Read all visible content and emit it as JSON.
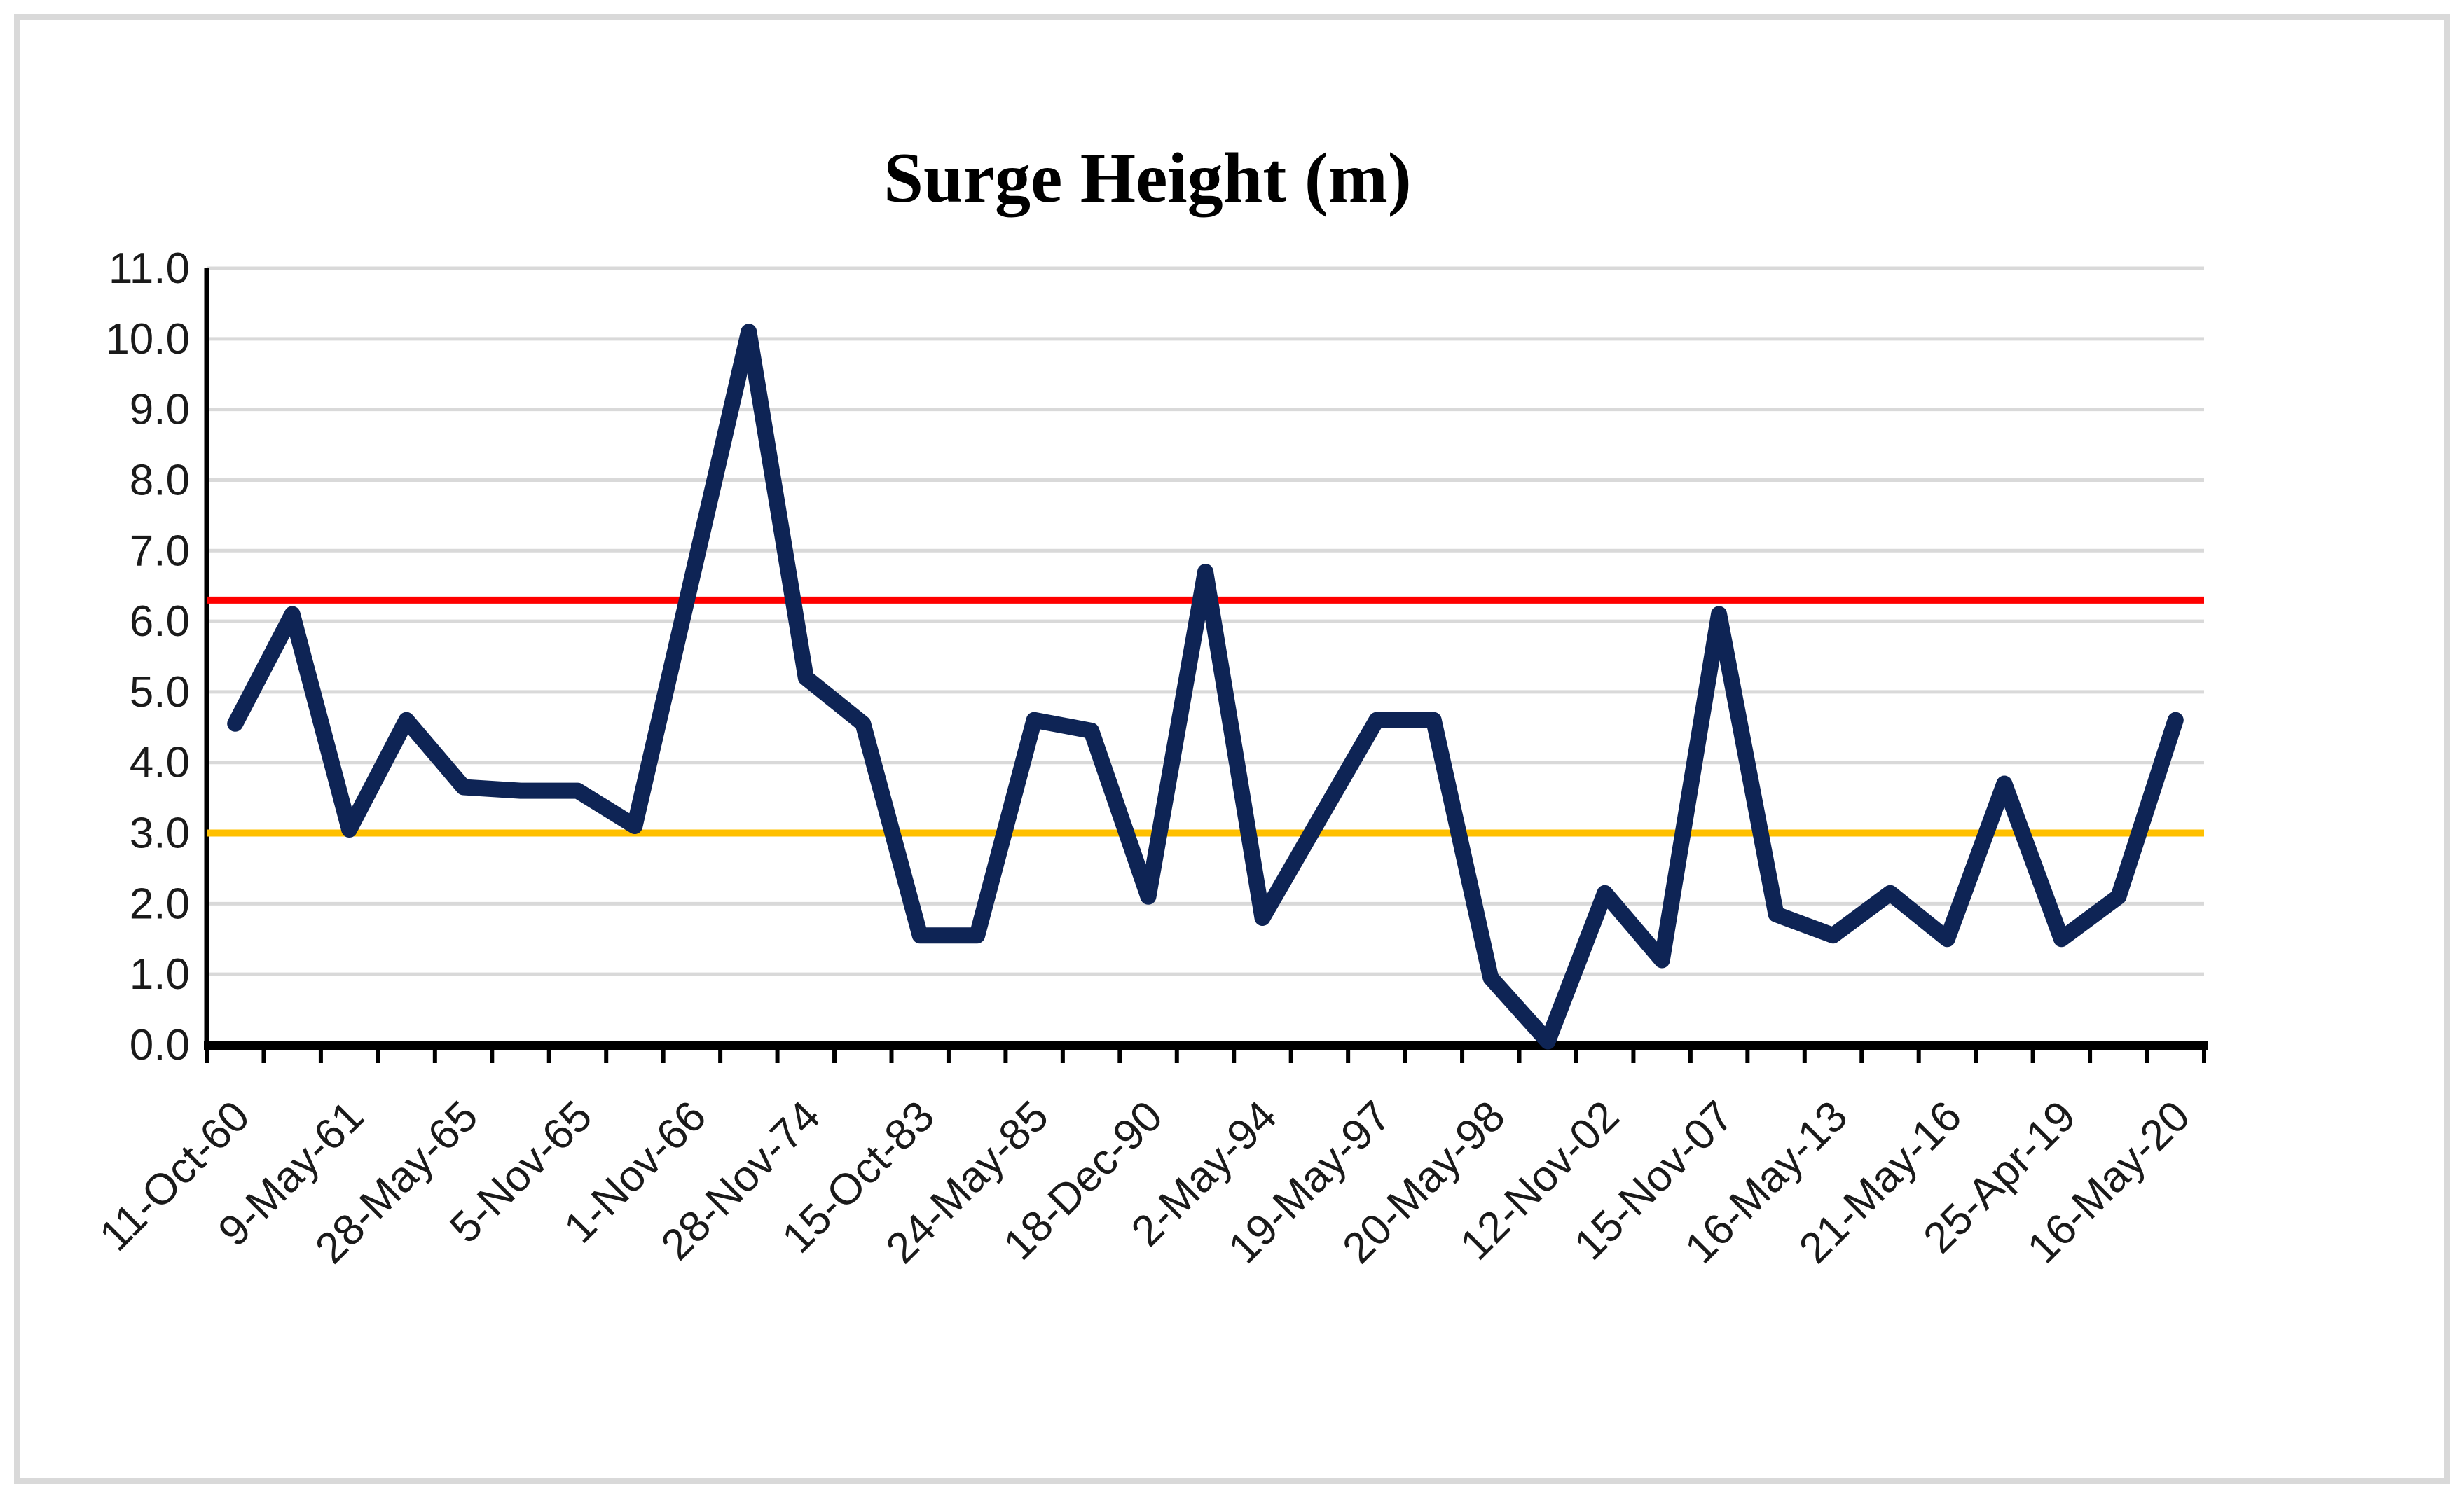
{
  "chart_data": {
    "type": "line",
    "title": "Surge Height (m)",
    "xlabel": "",
    "ylabel": "",
    "ylim": [
      0,
      11
    ],
    "ytick_step": 1.0,
    "grid": "horizontal",
    "legend": "none",
    "y_tick_labels": [
      "0.0",
      "1.0",
      "2.0",
      "3.0",
      "4.0",
      "5.0",
      "6.0",
      "7.0",
      "8.0",
      "9.0",
      "10.0",
      "11.0"
    ],
    "x_tick_labels": [
      "11-Oct-60",
      "9-May-61",
      "28-May-65",
      "5-Nov-65",
      "1-Nov-66",
      "28-Nov-74",
      "15-Oct-83",
      "24-May-85",
      "18-Dec-90",
      "2-May-94",
      "19-May-97",
      "20-May-98",
      "12-Nov-02",
      "15-Nov-07",
      "16-May-13",
      "21-May-16",
      "25-Apr-19",
      "16-May-20"
    ],
    "x_labels_every_n_points": 2,
    "series": [
      {
        "color": "#0e2455",
        "values": [
          4.55,
          6.1,
          3.05,
          4.6,
          3.65,
          3.6,
          3.6,
          3.1,
          6.6,
          10.1,
          5.2,
          4.55,
          1.55,
          1.55,
          4.6,
          4.45,
          2.1,
          6.7,
          1.8,
          3.2,
          4.6,
          4.6,
          0.95,
          0.05,
          2.15,
          1.2,
          6.1,
          1.85,
          1.55,
          2.15,
          1.5,
          3.7,
          1.5,
          2.1,
          4.6
        ]
      }
    ],
    "reference_lines": [
      {
        "value": 6.3,
        "color": "#ff0000"
      },
      {
        "value": 3.0,
        "color": "#ffc000"
      }
    ],
    "colors": {
      "gridline": "#d9d9d9",
      "axis": "#000000",
      "tick_label": "#1a1a1a"
    }
  }
}
